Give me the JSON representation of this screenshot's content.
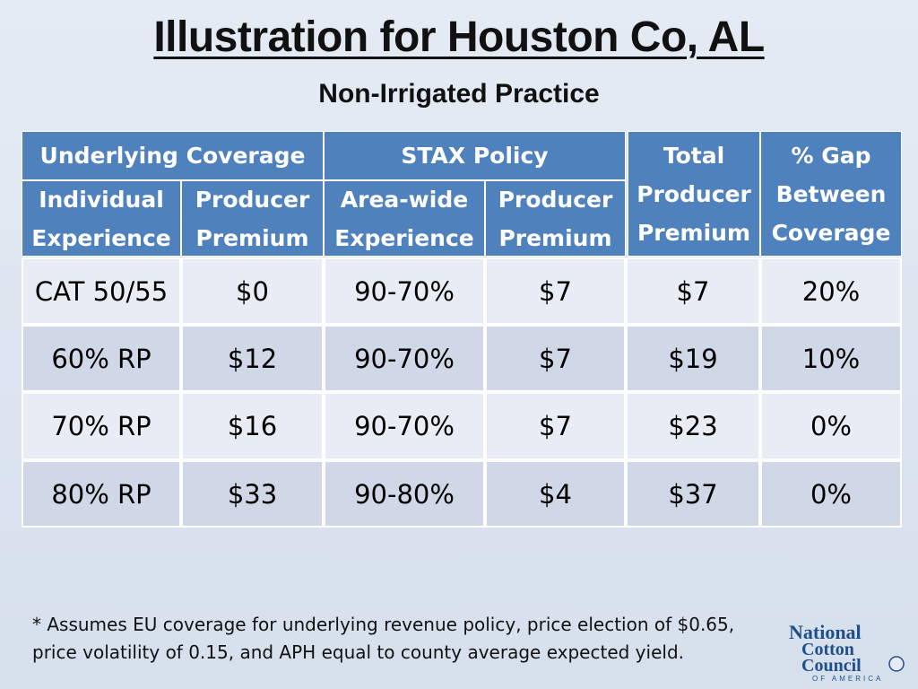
{
  "title": "Illustration for Houston Co, AL",
  "subtitle": "Non-Irrigated Practice",
  "table": {
    "group_headers": {
      "underlying_coverage": "Underlying Coverage",
      "stax_policy": "STAX Policy",
      "total_producer_premium": "Total Producer Premium",
      "pct_gap": "% Gap Between Coverage"
    },
    "sub_headers": {
      "individual_experience": "Individual Experience",
      "producer_premium_1": "Producer Premium",
      "area_wide_experience": "Area-wide Experience",
      "producer_premium_2": "Producer Premium"
    },
    "rows": [
      {
        "individual": "CAT 50/55",
        "producer_premium": "$0",
        "area_wide": "90-70%",
        "stax_premium": "$7",
        "total": "$7",
        "gap": "20%"
      },
      {
        "individual": "60% RP",
        "producer_premium": "$12",
        "area_wide": "90-70%",
        "stax_premium": "$7",
        "total": "$19",
        "gap": "10%"
      },
      {
        "individual": "70% RP",
        "producer_premium": "$16",
        "area_wide": "90-70%",
        "stax_premium": "$7",
        "total": "$23",
        "gap": "0%"
      },
      {
        "individual": "80% RP",
        "producer_premium": "$33",
        "area_wide": "90-80%",
        "stax_premium": "$4",
        "total": "$37",
        "gap": "0%"
      }
    ]
  },
  "footnote_line1": "* Assumes EU coverage for underlying revenue policy, price election of $0.65,",
  "footnote_line2": "price volatility of 0.15, and APH equal to county average expected yield.",
  "logo": {
    "line1": "National",
    "line2": "Cotton",
    "line3": "Council",
    "line4": "OF AMERICA"
  },
  "colors": {
    "header_blue": "#4f81bd",
    "row_light": "#e8ecf5",
    "row_dark": "#d0d8e8",
    "logo_blue": "#1f4e8c"
  }
}
